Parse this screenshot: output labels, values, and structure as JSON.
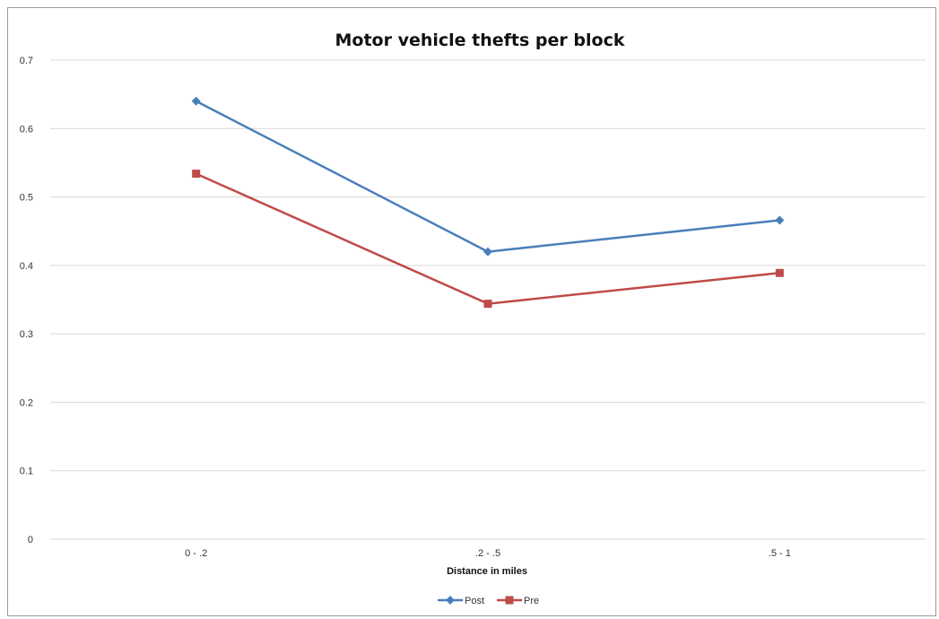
{
  "chart_data": {
    "type": "line",
    "title": "Motor vehicle thefts per block",
    "xlabel": "Distance in miles",
    "ylabel": "",
    "categories": [
      "0 - .2",
      ".2 - .5",
      ".5 - 1"
    ],
    "ylim": [
      0,
      0.7
    ],
    "yticks": [
      "0",
      "0.1",
      "0.2",
      "0.3",
      "0.4",
      "0.5",
      "0.6",
      "0.7"
    ],
    "grid": true,
    "legend_position": "bottom",
    "series": [
      {
        "name": "Post",
        "values": [
          0.64,
          0.42,
          0.466
        ],
        "color": "#4a7ebb",
        "marker": "diamond"
      },
      {
        "name": "Pre",
        "values": [
          0.534,
          0.344,
          0.389
        ],
        "color": "#be4b48",
        "marker": "square"
      }
    ]
  },
  "colors": {
    "gridline": "#d9d9d9",
    "axis": "#8c8c8c"
  }
}
